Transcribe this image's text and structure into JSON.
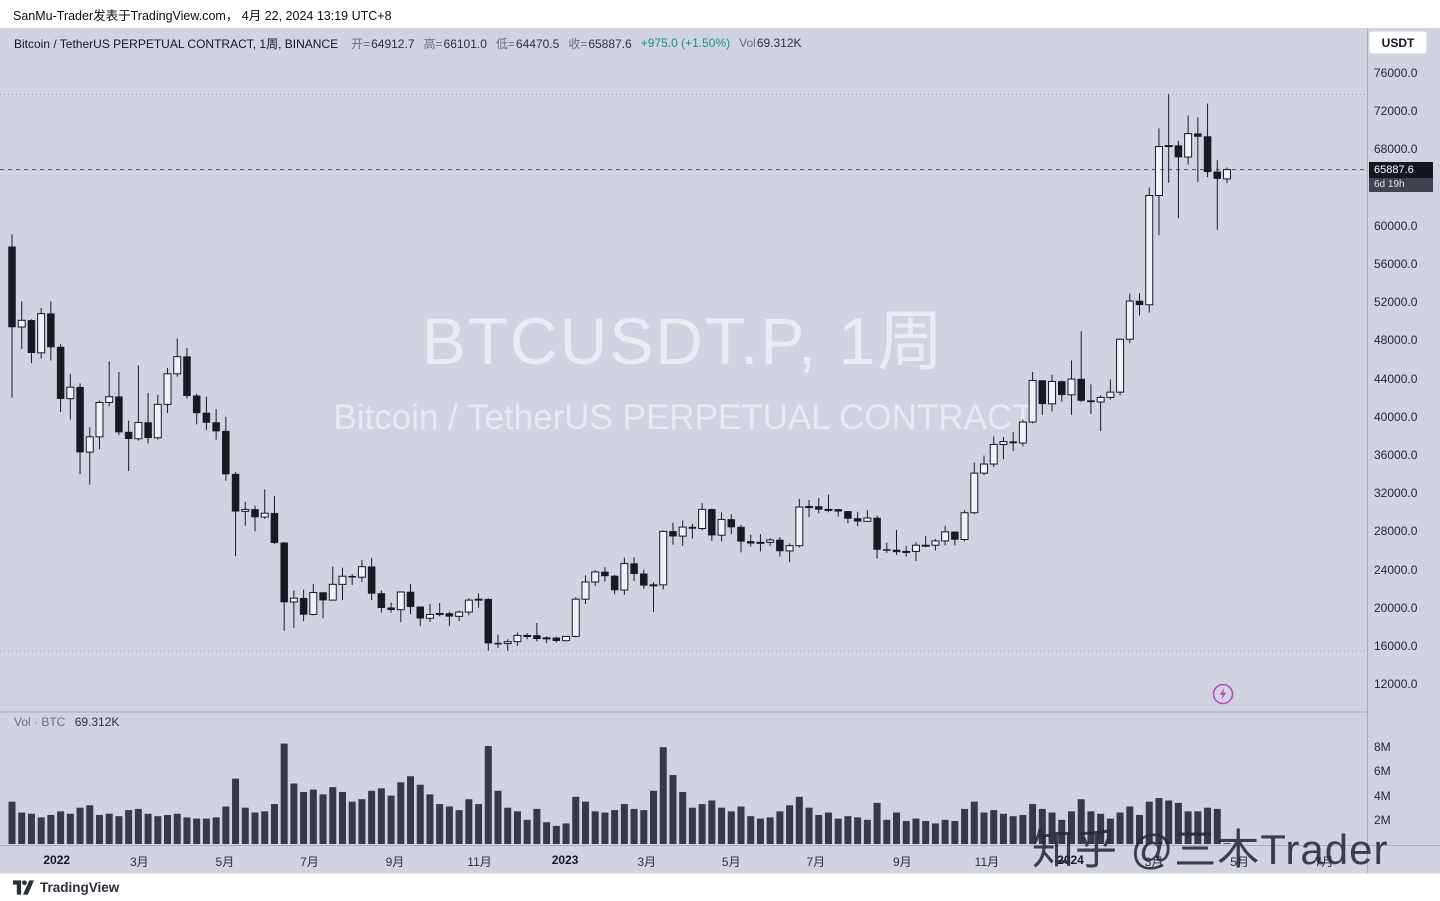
{
  "attribution": {
    "text": "SanMu-Trader发表于TradingView.com， 4月 22, 2024 13:19 UTC+8"
  },
  "header": {
    "symbol": "Bitcoin / TetherUS PERPETUAL CONTRACT, 1周, BINANCE",
    "ohlc": [
      {
        "label": "开=",
        "value": "64912.7"
      },
      {
        "label": "高=",
        "value": "66101.0"
      },
      {
        "label": "低=",
        "value": "64470.5"
      },
      {
        "label": "收=",
        "value": "65887.6"
      }
    ],
    "change": "+975.0 (+1.50%)",
    "vol_label": "Vol",
    "vol_value": "69.312K",
    "currency_button": "USDT"
  },
  "watermark": {
    "title": "BTCUSDT.P, 1周",
    "subtitle": "Bitcoin / TetherUS PERPETUAL CONTRACT"
  },
  "overlay_watermark": {
    "text": "知乎 @三木Trader"
  },
  "price_axis": [
    "76000.0",
    "72000.0",
    "68000.0",
    "60000.0",
    "56000.0",
    "52000.0",
    "48000.0",
    "44000.0",
    "40000.0",
    "36000.0",
    "32000.0",
    "28000.0",
    "24000.0",
    "20000.0",
    "16000.0",
    "12000.0"
  ],
  "last_price": {
    "value": "65887.6",
    "countdown": "6d 19h",
    "price": 65887.6
  },
  "volume_pane": {
    "label": "Vol · BTC",
    "value": "69.312K",
    "axis": [
      {
        "text": "8M",
        "v": 8
      },
      {
        "text": "6M",
        "v": 6
      },
      {
        "text": "4M",
        "v": 4
      },
      {
        "text": "2M",
        "v": 2
      }
    ]
  },
  "time_axis": [
    {
      "label": "2022",
      "week": 4.6,
      "year": true
    },
    {
      "label": "3月",
      "week": 13.1
    },
    {
      "label": "5月",
      "week": 21.9
    },
    {
      "label": "7月",
      "week": 30.6
    },
    {
      "label": "9月",
      "week": 39.4
    },
    {
      "label": "11月",
      "week": 48.1
    },
    {
      "label": "2023",
      "week": 56.9,
      "year": true
    },
    {
      "label": "3月",
      "week": 65.3
    },
    {
      "label": "5月",
      "week": 74.0
    },
    {
      "label": "7月",
      "week": 82.7
    },
    {
      "label": "9月",
      "week": 91.6
    },
    {
      "label": "11月",
      "week": 100.3
    },
    {
      "label": "2024",
      "week": 108.9,
      "year": true
    },
    {
      "label": "3月",
      "week": 117.5
    },
    {
      "label": "5月",
      "week": 126.3
    },
    {
      "label": "7月",
      "week": 135.0
    }
  ],
  "footer": {
    "brand": "TradingView"
  },
  "boost_icon": "lightning-bolt",
  "colors": {
    "positive": "#089981",
    "boost": "#b44bc4",
    "background": "#d1d4e0",
    "candle_dark": "#171a21",
    "candle_light": "#f1f2f6",
    "volume_bar": "#363a44"
  },
  "chart_data": {
    "type": "candlestick+volume",
    "symbol": "BTCUSDT.P",
    "timeframe": "1周",
    "exchange": "BINANCE",
    "title": "Bitcoin / TetherUS PERPETUAL CONTRACT, 1周, BINANCE",
    "ylim": [
      10000,
      77500
    ],
    "price_ticks": [
      76000,
      72000,
      68000,
      60000,
      56000,
      52000,
      48000,
      44000,
      40000,
      36000,
      32000,
      28000,
      24000,
      20000,
      16000,
      12000
    ],
    "volume_unit": "M BTC",
    "volume_ticks": [
      8,
      6,
      4,
      2
    ],
    "dotted_levels": [
      73777,
      15476
    ],
    "last_close": 65887.6,
    "candles_note": "weekly OHLCV, chronological, approx values read from chart; v in millions BTC",
    "candles": [
      [
        57800,
        59100,
        42000,
        49400,
        3.5
      ],
      [
        49400,
        52100,
        47100,
        50100,
        2.6
      ],
      [
        50100,
        50200,
        45600,
        46700,
        2.5
      ],
      [
        46700,
        51400,
        46100,
        50800,
        2.2
      ],
      [
        50800,
        52100,
        45900,
        47300,
        2.4
      ],
      [
        47300,
        47600,
        40500,
        41900,
        2.7
      ],
      [
        41900,
        44500,
        39700,
        43100,
        2.5
      ],
      [
        43100,
        43500,
        34000,
        36300,
        3.0
      ],
      [
        36300,
        38900,
        32900,
        37900,
        3.2
      ],
      [
        37900,
        41700,
        36600,
        41500,
        2.4
      ],
      [
        41500,
        45800,
        41100,
        42100,
        2.5
      ],
      [
        42100,
        44700,
        38100,
        38400,
        2.3
      ],
      [
        38400,
        39600,
        34300,
        37700,
        2.8
      ],
      [
        37700,
        45400,
        37500,
        39400,
        2.9
      ],
      [
        39400,
        42500,
        37200,
        37800,
        2.5
      ],
      [
        37800,
        42300,
        37600,
        41300,
        2.3
      ],
      [
        41300,
        45100,
        40400,
        44500,
        2.4
      ],
      [
        44500,
        48200,
        44200,
        46300,
        2.5
      ],
      [
        46300,
        47200,
        41900,
        42200,
        2.2
      ],
      [
        42200,
        42400,
        39200,
        40400,
        2.1
      ],
      [
        40400,
        42100,
        38600,
        39400,
        2.1
      ],
      [
        39400,
        40800,
        37600,
        38500,
        2.2
      ],
      [
        38500,
        40000,
        33300,
        34000,
        3.1
      ],
      [
        34000,
        34200,
        25400,
        30100,
        5.4
      ],
      [
        30100,
        31100,
        28600,
        30300,
        3.0
      ],
      [
        30300,
        30700,
        28000,
        29500,
        2.6
      ],
      [
        29500,
        32400,
        29300,
        29900,
        2.7
      ],
      [
        29900,
        31700,
        26700,
        26800,
        3.3
      ],
      [
        26800,
        26900,
        17600,
        20600,
        8.3
      ],
      [
        20600,
        21800,
        17900,
        21000,
        5.0
      ],
      [
        21000,
        21900,
        18600,
        19300,
        4.3
      ],
      [
        19300,
        22500,
        19200,
        21600,
        4.5
      ],
      [
        21600,
        21600,
        18900,
        20800,
        4.1
      ],
      [
        20800,
        24300,
        20750,
        22450,
        4.7
      ],
      [
        22450,
        24200,
        20800,
        23300,
        4.3
      ],
      [
        23300,
        23500,
        22400,
        23200,
        3.5
      ],
      [
        23200,
        25000,
        22700,
        24300,
        3.7
      ],
      [
        24300,
        25200,
        20800,
        21500,
        4.4
      ],
      [
        21500,
        21800,
        19500,
        20000,
        4.6
      ],
      [
        20000,
        20550,
        19500,
        19800,
        4.0
      ],
      [
        19800,
        21650,
        18500,
        21650,
        5.1
      ],
      [
        21650,
        22500,
        19300,
        20100,
        5.6
      ],
      [
        20100,
        20100,
        18100,
        18900,
        4.9
      ],
      [
        18900,
        20400,
        18500,
        19300,
        4.1
      ],
      [
        19300,
        20500,
        19100,
        19400,
        3.3
      ],
      [
        19400,
        19600,
        18100,
        19100,
        3.1
      ],
      [
        19100,
        19700,
        18600,
        19550,
        2.8
      ],
      [
        19550,
        21000,
        19200,
        20800,
        3.7
      ],
      [
        20800,
        21500,
        20000,
        20900,
        3.3
      ],
      [
        20900,
        21000,
        15500,
        16300,
        8.1
      ],
      [
        16300,
        17200,
        15800,
        16250,
        4.4
      ],
      [
        16250,
        16700,
        15500,
        16450,
        3.0
      ],
      [
        16450,
        17400,
        16000,
        17100,
        2.7
      ],
      [
        17100,
        17350,
        16700,
        17100,
        2.0
      ],
      [
        17100,
        18400,
        16500,
        16750,
        2.9
      ],
      [
        16750,
        17000,
        16300,
        16850,
        1.8
      ],
      [
        16850,
        16970,
        16350,
        16550,
        1.5
      ],
      [
        16550,
        17050,
        16500,
        17000,
        1.7
      ],
      [
        17000,
        21100,
        16900,
        20900,
        3.9
      ],
      [
        20900,
        23400,
        20400,
        22700,
        3.5
      ],
      [
        22700,
        23950,
        22300,
        23750,
        2.7
      ],
      [
        23750,
        24250,
        22750,
        23330,
        2.6
      ],
      [
        23330,
        23450,
        21400,
        21860,
        2.8
      ],
      [
        21860,
        25250,
        21350,
        24630,
        3.3
      ],
      [
        24630,
        25300,
        22800,
        23560,
        2.9
      ],
      [
        23560,
        23990,
        22000,
        22350,
        2.8
      ],
      [
        22350,
        22650,
        19550,
        22400,
        4.4
      ],
      [
        22400,
        28100,
        21900,
        28000,
        8.0
      ],
      [
        28000,
        28900,
        26600,
        27500,
        5.7
      ],
      [
        27500,
        29150,
        26500,
        28450,
        4.3
      ],
      [
        28450,
        28800,
        27250,
        28300,
        3.0
      ],
      [
        28300,
        30950,
        28100,
        30300,
        3.3
      ],
      [
        30300,
        30400,
        27000,
        27600,
        3.6
      ],
      [
        27600,
        30000,
        26950,
        29250,
        3.0
      ],
      [
        29250,
        29800,
        27700,
        28450,
        2.7
      ],
      [
        28450,
        28680,
        25800,
        26950,
        3.1
      ],
      [
        26950,
        27650,
        26400,
        26750,
        2.3
      ],
      [
        26750,
        27700,
        25900,
        26850,
        2.1
      ],
      [
        26850,
        27300,
        26500,
        27100,
        2.2
      ],
      [
        27100,
        27400,
        25350,
        25950,
        2.7
      ],
      [
        25950,
        26750,
        24800,
        26500,
        3.2
      ],
      [
        26500,
        31400,
        26300,
        30550,
        3.9
      ],
      [
        30550,
        31300,
        29500,
        30600,
        3.0
      ],
      [
        30600,
        31500,
        29900,
        30300,
        2.4
      ],
      [
        30300,
        31850,
        30000,
        30300,
        2.6
      ],
      [
        30300,
        30350,
        29550,
        30100,
        2.1
      ],
      [
        30100,
        30100,
        28850,
        29350,
        2.3
      ],
      [
        29350,
        30050,
        28550,
        29050,
        2.2
      ],
      [
        29050,
        30200,
        29000,
        29400,
        2.0
      ],
      [
        29400,
        29650,
        25150,
        26100,
        3.4
      ],
      [
        26100,
        26800,
        25750,
        26050,
        2.0
      ],
      [
        26050,
        28150,
        25550,
        25850,
        2.6
      ],
      [
        25850,
        26450,
        25350,
        25900,
        1.9
      ],
      [
        25900,
        26850,
        24900,
        26550,
        2.1
      ],
      [
        26550,
        27500,
        26350,
        26550,
        1.9
      ],
      [
        26550,
        27200,
        26000,
        27000,
        1.7
      ],
      [
        27000,
        28600,
        26550,
        27950,
        2.0
      ],
      [
        27950,
        27990,
        26550,
        27150,
        1.9
      ],
      [
        27150,
        30200,
        26950,
        29950,
        2.9
      ],
      [
        29950,
        35200,
        29800,
        34100,
        3.5
      ],
      [
        34100,
        35950,
        33900,
        35050,
        2.6
      ],
      [
        35050,
        37950,
        34750,
        37100,
        2.8
      ],
      [
        37100,
        37900,
        35550,
        37400,
        2.5
      ],
      [
        37400,
        38400,
        36400,
        37250,
        2.3
      ],
      [
        37250,
        39700,
        36900,
        39450,
        2.4
      ],
      [
        39450,
        44700,
        39300,
        43800,
        3.3
      ],
      [
        43800,
        43800,
        40200,
        41350,
        2.9
      ],
      [
        41350,
        44400,
        40550,
        43700,
        2.6
      ],
      [
        43700,
        43800,
        41600,
        42300,
        2.0
      ],
      [
        42300,
        45900,
        40200,
        43950,
        2.7
      ],
      [
        43950,
        48950,
        41500,
        41700,
        3.7
      ],
      [
        41700,
        43400,
        40300,
        41550,
        2.7
      ],
      [
        41550,
        42250,
        38500,
        42030,
        2.5
      ],
      [
        42030,
        43900,
        41800,
        42580,
        2.1
      ],
      [
        42580,
        48200,
        42250,
        48120,
        2.6
      ],
      [
        48120,
        52900,
        47700,
        52120,
        3.1
      ],
      [
        52120,
        52950,
        50600,
        51730,
        2.4
      ],
      [
        51730,
        64000,
        50900,
        63170,
        3.5
      ],
      [
        63170,
        70200,
        59000,
        68300,
        3.8
      ],
      [
        68300,
        73800,
        64500,
        68400,
        3.6
      ],
      [
        68400,
        68900,
        60800,
        67200,
        3.4
      ],
      [
        67200,
        71550,
        66400,
        69650,
        2.7
      ],
      [
        69650,
        71350,
        64550,
        69350,
        2.7
      ],
      [
        69350,
        72800,
        65100,
        65650,
        3.0
      ],
      [
        65650,
        66870,
        59600,
        64940,
        2.9
      ],
      [
        64912.7,
        66101.0,
        64470.5,
        65887.6,
        0.069
      ]
    ]
  }
}
